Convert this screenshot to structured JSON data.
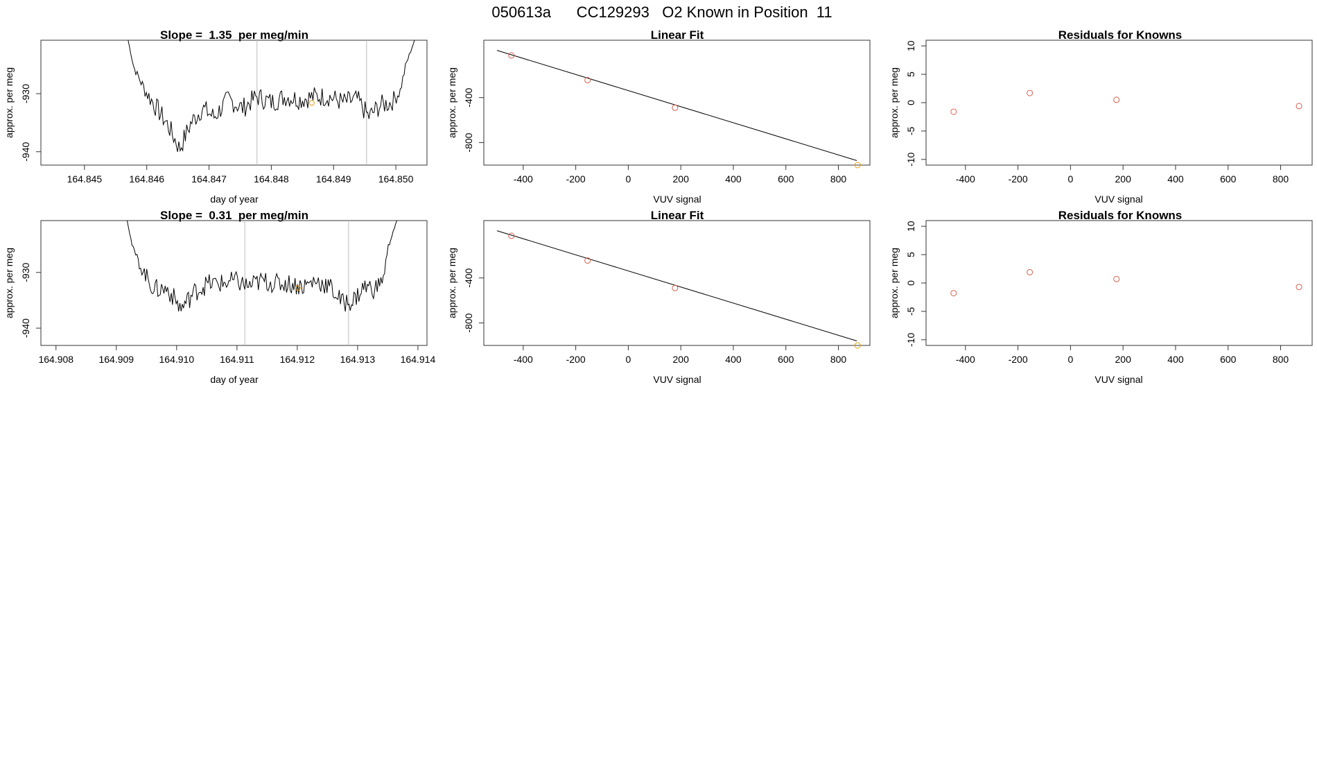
{
  "figure": {
    "title": "050613a      CC129293   O2 Known in Position  11"
  },
  "chart_data": [
    {
      "id": "ts1",
      "type": "line",
      "title": "Slope =  1.35  per meg/min",
      "xlabel": "day of year",
      "ylabel": "approx. per meg",
      "xlim": [
        164.8443,
        164.8505
      ],
      "ylim": [
        -942.3,
        -920.8
      ],
      "xticks": [
        "164.845",
        "164.846",
        "164.847",
        "164.848",
        "164.849",
        "164.850"
      ],
      "yticks": [
        "-940",
        "-930"
      ],
      "x_start": 164.8457,
      "x_end": 164.8503,
      "y_start": -920.8,
      "y_end": -920.8,
      "shape": [
        [
          0,
          -920.8
        ],
        [
          0.02,
          -925.5
        ],
        [
          0.06,
          -929.5
        ],
        [
          0.1,
          -932.5
        ],
        [
          0.14,
          -935.5
        ],
        [
          0.18,
          -939.5
        ],
        [
          0.22,
          -935
        ],
        [
          0.26,
          -932.5
        ],
        [
          0.3,
          -934
        ],
        [
          0.35,
          -931
        ],
        [
          0.4,
          -932.5
        ],
        [
          0.45,
          -930.5
        ],
        [
          0.5,
          -931.5
        ],
        [
          0.55,
          -930.5
        ],
        [
          0.6,
          -931
        ],
        [
          0.65,
          -930.5
        ],
        [
          0.7,
          -930.5
        ],
        [
          0.75,
          -931.5
        ],
        [
          0.8,
          -931
        ],
        [
          0.84,
          -934
        ],
        [
          0.88,
          -932
        ],
        [
          0.92,
          -931.5
        ],
        [
          0.95,
          -929.5
        ],
        [
          0.97,
          -925
        ],
        [
          1,
          -920.8
        ]
      ],
      "noise_amp": 1.8,
      "vlines": [
        164.84777,
        164.84953
      ],
      "marker": {
        "x": 164.84865,
        "y": -931.6,
        "color": "#E69F00"
      }
    },
    {
      "id": "fit1",
      "type": "scatter",
      "title": "Linear Fit",
      "xlabel": "VUV signal",
      "ylabel": "approx. per meg",
      "xlim": [
        -550,
        920
      ],
      "ylim": [
        -1000,
        110
      ],
      "xticks": [
        -400,
        -200,
        0,
        200,
        400,
        600,
        800
      ],
      "yticks": [
        -800,
        -400
      ],
      "line": {
        "x1": -500,
        "y1": 20,
        "x2": 870,
        "y2": -960
      },
      "points": [
        {
          "x": -445,
          "y": -25,
          "color": "#D6604D"
        },
        {
          "x": -155,
          "y": -245,
          "color": "#D6604D"
        },
        {
          "x": 178,
          "y": -490,
          "color": "#D6604D"
        },
        {
          "x": 873,
          "y": -1012,
          "color": "#E69F00"
        }
      ]
    },
    {
      "id": "res1",
      "type": "scatter",
      "title": "Residuals for Knowns",
      "xlabel": "VUV signal",
      "ylabel": "approx. per meg",
      "xlim": [
        -550,
        920
      ],
      "ylim": [
        -11,
        11
      ],
      "xticks": [
        -400,
        -200,
        0,
        200,
        400,
        600,
        800
      ],
      "yticks": [
        -10,
        -5,
        0,
        5,
        10
      ],
      "points": [
        {
          "x": -445,
          "y": -1.6,
          "color": "#D6604D"
        },
        {
          "x": -155,
          "y": 1.7,
          "color": "#D6604D"
        },
        {
          "x": 175,
          "y": 0.5,
          "color": "#D6604D"
        },
        {
          "x": 870,
          "y": -0.6,
          "color": "#D6604D"
        }
      ]
    },
    {
      "id": "ts2",
      "type": "line",
      "title": "Slope =  0.31  per meg/min",
      "xlabel": "day of year",
      "ylabel": "approx. per meg",
      "xlim": [
        164.90775,
        164.91415
      ],
      "ylim": [
        -943.1,
        -920.7
      ],
      "xticks": [
        "164.908",
        "164.909",
        "164.910",
        "164.911",
        "164.912",
        "164.913",
        "164.914"
      ],
      "yticks": [
        "-940",
        "-930"
      ],
      "x_start": 164.90918,
      "x_end": 164.91365,
      "y_start": -920.7,
      "y_end": -920.7,
      "shape": [
        [
          0,
          -920.7
        ],
        [
          0.02,
          -925.5
        ],
        [
          0.05,
          -929
        ],
        [
          0.1,
          -933
        ],
        [
          0.15,
          -933
        ],
        [
          0.2,
          -936.5
        ],
        [
          0.25,
          -933.5
        ],
        [
          0.3,
          -932
        ],
        [
          0.35,
          -932
        ],
        [
          0.4,
          -931.5
        ],
        [
          0.45,
          -932.5
        ],
        [
          0.5,
          -931.5
        ],
        [
          0.55,
          -932
        ],
        [
          0.6,
          -932
        ],
        [
          0.65,
          -932.5
        ],
        [
          0.7,
          -931.5
        ],
        [
          0.75,
          -932.5
        ],
        [
          0.8,
          -935.5
        ],
        [
          0.84,
          -935
        ],
        [
          0.88,
          -932.5
        ],
        [
          0.92,
          -933
        ],
        [
          0.95,
          -931
        ],
        [
          0.97,
          -925
        ],
        [
          1,
          -920.7
        ]
      ],
      "noise_amp": 1.8,
      "vlines": [
        164.91113,
        164.91285
      ],
      "marker": {
        "x": 164.91201,
        "y": -932.8,
        "color": "#E69F00"
      }
    },
    {
      "id": "fit2",
      "type": "scatter",
      "title": "Linear Fit",
      "xlabel": "VUV signal",
      "ylabel": "approx. per meg",
      "xlim": [
        -550,
        920
      ],
      "ylim": [
        -1000,
        110
      ],
      "xticks": [
        -400,
        -200,
        0,
        200,
        400,
        600,
        800
      ],
      "yticks": [
        -800,
        -400
      ],
      "line": {
        "x1": -500,
        "y1": 20,
        "x2": 870,
        "y2": -960
      },
      "points": [
        {
          "x": -445,
          "y": -25,
          "color": "#D6604D"
        },
        {
          "x": -155,
          "y": -245,
          "color": "#D6604D"
        },
        {
          "x": 178,
          "y": -490,
          "color": "#D6604D"
        },
        {
          "x": 873,
          "y": -1012,
          "color": "#E69F00"
        }
      ]
    },
    {
      "id": "res2",
      "type": "scatter",
      "title": "Residuals for Knowns",
      "xlabel": "VUV signal",
      "ylabel": "approx. per meg",
      "xlim": [
        -550,
        920
      ],
      "ylim": [
        -11,
        11
      ],
      "xticks": [
        -400,
        -200,
        0,
        200,
        400,
        600,
        800
      ],
      "yticks": [
        -10,
        -5,
        0,
        5,
        10
      ],
      "points": [
        {
          "x": -445,
          "y": -1.8,
          "color": "#D6604D"
        },
        {
          "x": -155,
          "y": 1.9,
          "color": "#D6604D"
        },
        {
          "x": 175,
          "y": 0.7,
          "color": "#D6604D"
        },
        {
          "x": 870,
          "y": -0.7,
          "color": "#D6604D"
        }
      ]
    }
  ]
}
